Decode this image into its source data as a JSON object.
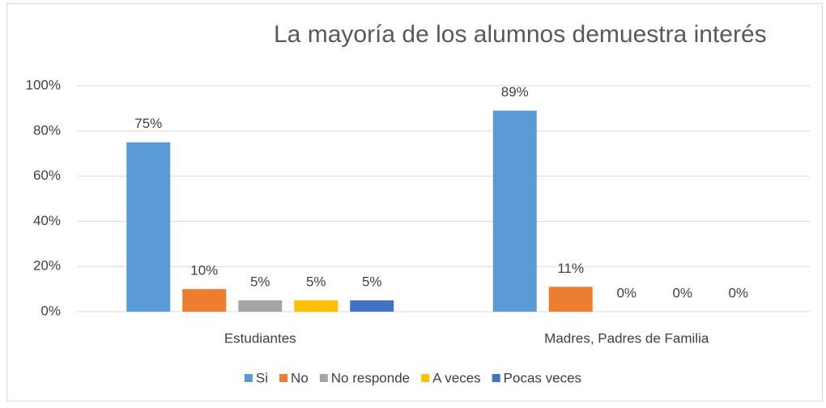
{
  "chart_data": {
    "type": "bar",
    "title": "La mayoría de los alumnos demuestra interés",
    "categories": [
      "Estudiantes",
      "Madres, Padres de Familia"
    ],
    "series": [
      {
        "name": "Si",
        "color": "#5b9bd5",
        "values": [
          75,
          89
        ],
        "value_labels": [
          "75%",
          "89%"
        ]
      },
      {
        "name": "No",
        "color": "#ed7d31",
        "values": [
          10,
          11
        ],
        "value_labels": [
          "10%",
          "11%"
        ]
      },
      {
        "name": "No responde",
        "color": "#a5a5a5",
        "values": [
          5,
          0
        ],
        "value_labels": [
          "5%",
          "0%"
        ]
      },
      {
        "name": "A veces",
        "color": "#ffc000",
        "values": [
          5,
          0
        ],
        "value_labels": [
          "5%",
          "0%"
        ]
      },
      {
        "name": "Pocas veces",
        "color": "#4472c4",
        "values": [
          5,
          0
        ],
        "value_labels": [
          "5%",
          "0%"
        ]
      }
    ],
    "ylim": [
      0,
      100
    ],
    "yticks": [
      {
        "value": 0,
        "label": "0%"
      },
      {
        "value": 20,
        "label": "20%"
      },
      {
        "value": 40,
        "label": "40%"
      },
      {
        "value": 60,
        "label": "60%"
      },
      {
        "value": 80,
        "label": "80%"
      },
      {
        "value": 100,
        "label": "100%"
      }
    ],
    "grid": true,
    "legend": "bottom"
  }
}
